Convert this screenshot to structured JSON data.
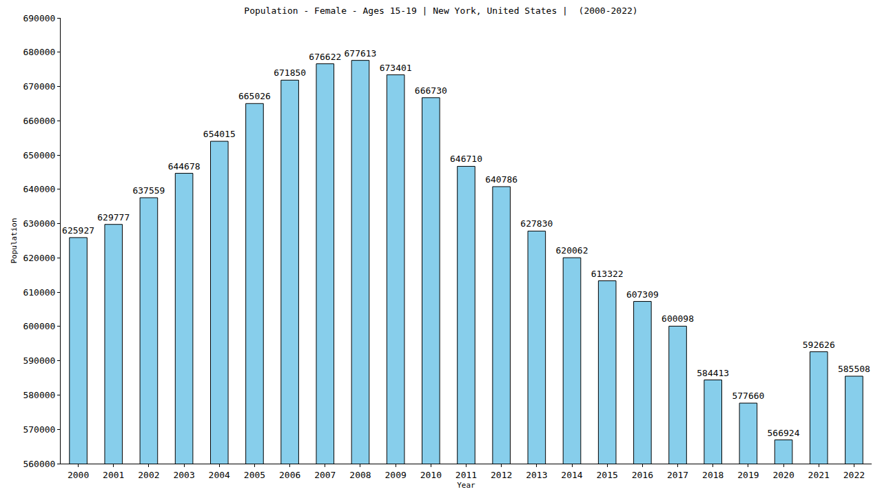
{
  "chart_data": {
    "type": "bar",
    "title": "Population - Female - Ages 15-19 | New York, United States |  (2000-2022)",
    "x_label": "Year",
    "y_label": "Population",
    "categories": [
      "2000",
      "2001",
      "2002",
      "2003",
      "2004",
      "2005",
      "2006",
      "2007",
      "2008",
      "2009",
      "2010",
      "2011",
      "2012",
      "2013",
      "2014",
      "2015",
      "2016",
      "2017",
      "2018",
      "2019",
      "2020",
      "2021",
      "2022"
    ],
    "values": [
      625927,
      629777,
      637559,
      644678,
      654015,
      665026,
      671850,
      676622,
      677613,
      673401,
      666730,
      646710,
      640786,
      627830,
      620062,
      613322,
      607309,
      600098,
      584413,
      577660,
      566924,
      592626,
      585508
    ],
    "color": "#87ceeb",
    "ylim": [
      560000,
      690000
    ],
    "yticks": [
      560000,
      570000,
      580000,
      590000,
      600000,
      610000,
      620000,
      630000,
      640000,
      650000,
      660000,
      670000,
      680000,
      690000
    ],
    "grid": false,
    "data_labels": true
  }
}
